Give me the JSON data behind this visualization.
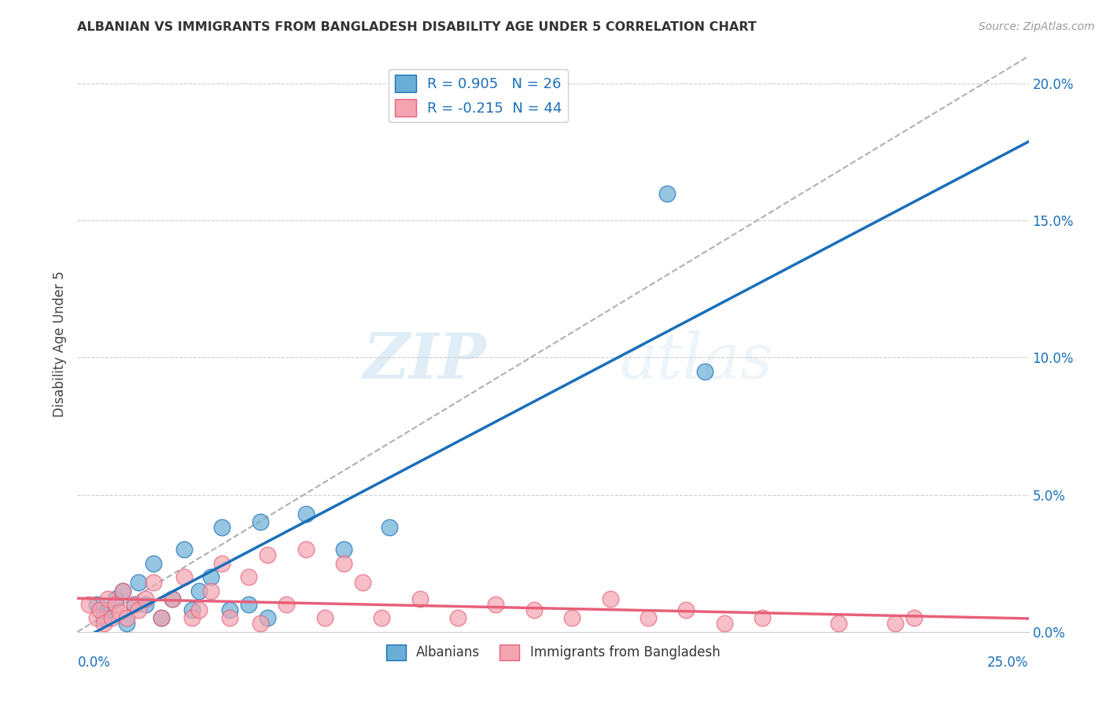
{
  "title": "ALBANIAN VS IMMIGRANTS FROM BANGLADESH DISABILITY AGE UNDER 5 CORRELATION CHART",
  "source": "Source: ZipAtlas.com",
  "ylabel": "Disability Age Under 5",
  "legend_albanians": "Albanians",
  "legend_bangladesh": "Immigrants from Bangladesh",
  "R_albanians": 0.905,
  "N_albanians": 26,
  "R_bangladesh": -0.215,
  "N_bangladesh": 44,
  "color_blue": "#6aaed6",
  "color_pink": "#f4a4b0",
  "color_blue_line": "#1a6fba",
  "color_pink_line": "#e8607a",
  "color_dashed_line": "#b0b0b0",
  "watermark_zip": "ZIP",
  "watermark_atlas": "atlas",
  "xlim": [
    0.0,
    0.25
  ],
  "ylim": [
    0.0,
    0.21
  ],
  "blue_scatter_x": [
    0.005,
    0.007,
    0.008,
    0.01,
    0.012,
    0.013,
    0.015,
    0.016,
    0.018,
    0.02,
    0.022,
    0.025,
    0.028,
    0.03,
    0.032,
    0.035,
    0.038,
    0.04,
    0.045,
    0.048,
    0.05,
    0.06,
    0.07,
    0.082,
    0.155,
    0.165
  ],
  "blue_scatter_y": [
    0.01,
    0.005,
    0.008,
    0.012,
    0.015,
    0.003,
    0.01,
    0.018,
    0.01,
    0.025,
    0.005,
    0.012,
    0.03,
    0.008,
    0.015,
    0.02,
    0.038,
    0.008,
    0.01,
    0.04,
    0.005,
    0.043,
    0.03,
    0.038,
    0.16,
    0.095
  ],
  "pink_scatter_x": [
    0.003,
    0.005,
    0.006,
    0.007,
    0.008,
    0.009,
    0.01,
    0.011,
    0.012,
    0.013,
    0.015,
    0.016,
    0.018,
    0.02,
    0.022,
    0.025,
    0.028,
    0.03,
    0.032,
    0.035,
    0.038,
    0.04,
    0.045,
    0.048,
    0.05,
    0.055,
    0.06,
    0.065,
    0.07,
    0.075,
    0.08,
    0.09,
    0.1,
    0.11,
    0.12,
    0.13,
    0.14,
    0.15,
    0.16,
    0.17,
    0.18,
    0.2,
    0.215,
    0.22
  ],
  "pink_scatter_y": [
    0.01,
    0.005,
    0.008,
    0.003,
    0.012,
    0.005,
    0.01,
    0.007,
    0.015,
    0.005,
    0.01,
    0.008,
    0.012,
    0.018,
    0.005,
    0.012,
    0.02,
    0.005,
    0.008,
    0.015,
    0.025,
    0.005,
    0.02,
    0.003,
    0.028,
    0.01,
    0.03,
    0.005,
    0.025,
    0.018,
    0.005,
    0.012,
    0.005,
    0.01,
    0.008,
    0.005,
    0.012,
    0.005,
    0.008,
    0.003,
    0.005,
    0.003,
    0.003,
    0.005
  ]
}
